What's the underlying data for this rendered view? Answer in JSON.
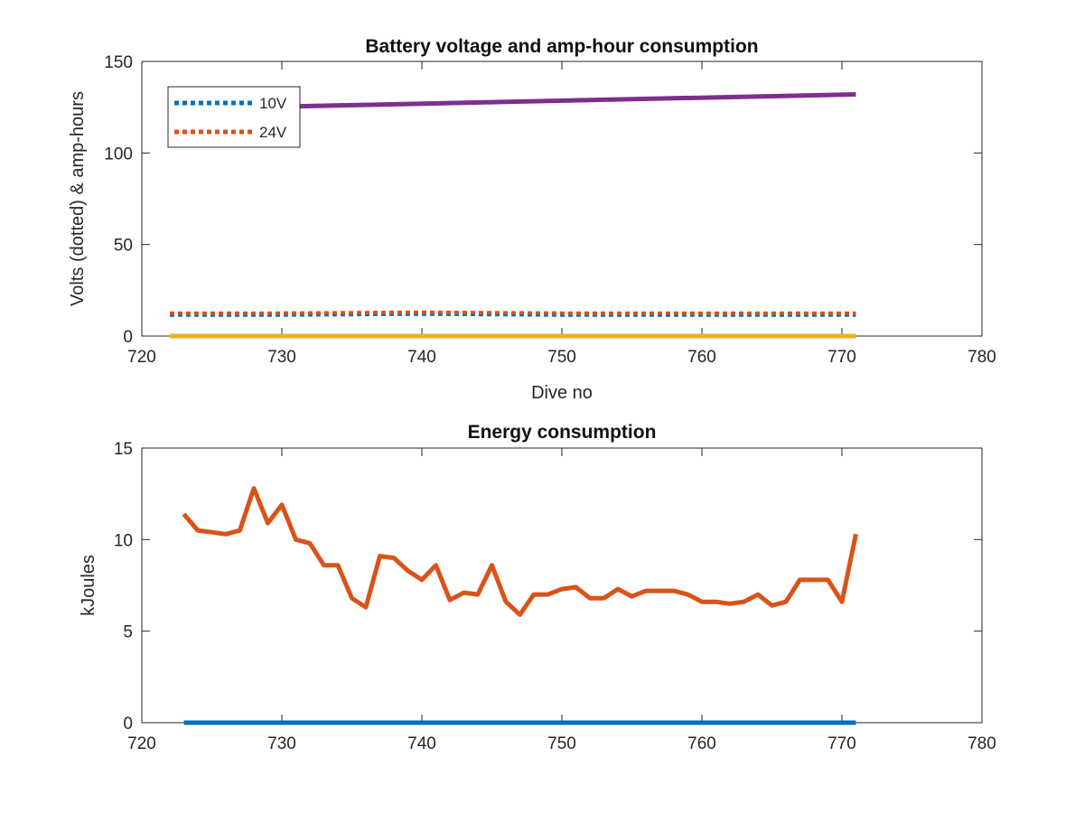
{
  "chart_data": [
    {
      "type": "line",
      "title": "Battery voltage and amp-hour consumption",
      "xlabel": "Dive no",
      "ylabel": "Volts (dotted) & amp-hours",
      "xlim": [
        720,
        780
      ],
      "ylim": [
        0,
        150
      ],
      "xticks": [
        720,
        730,
        740,
        750,
        760,
        770,
        780
      ],
      "yticks": [
        0,
        50,
        100,
        150
      ],
      "grid": false,
      "legend_position": "top-left",
      "series": [
        {
          "name": "10V",
          "color": "#0072BD",
          "style": "dotted",
          "x": [
            722,
            730,
            740,
            750,
            760,
            771
          ],
          "y": [
            11.5,
            11.5,
            12,
            11.5,
            11.5,
            11.5
          ]
        },
        {
          "name": "24V",
          "color": "#D95319",
          "style": "dotted",
          "x": [
            722,
            730,
            740,
            750,
            760,
            771
          ],
          "y": [
            12.5,
            12.5,
            13,
            12.5,
            12.5,
            12.5
          ]
        },
        {
          "color": "#7E2F8E",
          "style": "solid",
          "x": [
            722,
            771
          ],
          "y": [
            124,
            132
          ]
        },
        {
          "color": "#EDB120",
          "style": "solid",
          "x": [
            722,
            771
          ],
          "y": [
            0,
            0
          ]
        }
      ]
    },
    {
      "type": "line",
      "title": "Energy consumption",
      "xlabel": "",
      "ylabel": "kJoules",
      "xlim": [
        720,
        780
      ],
      "ylim": [
        0,
        15
      ],
      "xticks": [
        720,
        730,
        740,
        750,
        760,
        770,
        780
      ],
      "yticks": [
        0,
        5,
        10,
        15
      ],
      "grid": false,
      "series": [
        {
          "color": "#0072BD",
          "style": "solid",
          "x": [
            723,
            771
          ],
          "y": [
            0,
            0
          ]
        },
        {
          "color": "#D95319",
          "style": "solid",
          "x": [
            723,
            724,
            725,
            726,
            727,
            728,
            729,
            730,
            731,
            732,
            733,
            734,
            735,
            736,
            737,
            738,
            739,
            740,
            741,
            742,
            743,
            744,
            745,
            746,
            747,
            748,
            749,
            750,
            751,
            752,
            753,
            754,
            755,
            756,
            757,
            758,
            759,
            760,
            761,
            762,
            763,
            764,
            765,
            766,
            767,
            768,
            769,
            770,
            771
          ],
          "y": [
            11.4,
            10.5,
            10.4,
            10.3,
            10.5,
            12.8,
            10.9,
            11.9,
            10.0,
            9.8,
            8.6,
            8.6,
            6.8,
            6.3,
            9.1,
            9.0,
            8.3,
            7.8,
            8.6,
            6.7,
            7.1,
            7.0,
            8.6,
            6.6,
            5.9,
            7.0,
            7.0,
            7.3,
            7.4,
            6.8,
            6.8,
            7.3,
            6.9,
            7.2,
            7.2,
            7.2,
            7.0,
            6.6,
            6.6,
            6.5,
            6.6,
            7.0,
            6.4,
            6.6,
            7.8,
            7.8,
            7.8,
            6.6,
            10.3
          ]
        }
      ]
    }
  ]
}
